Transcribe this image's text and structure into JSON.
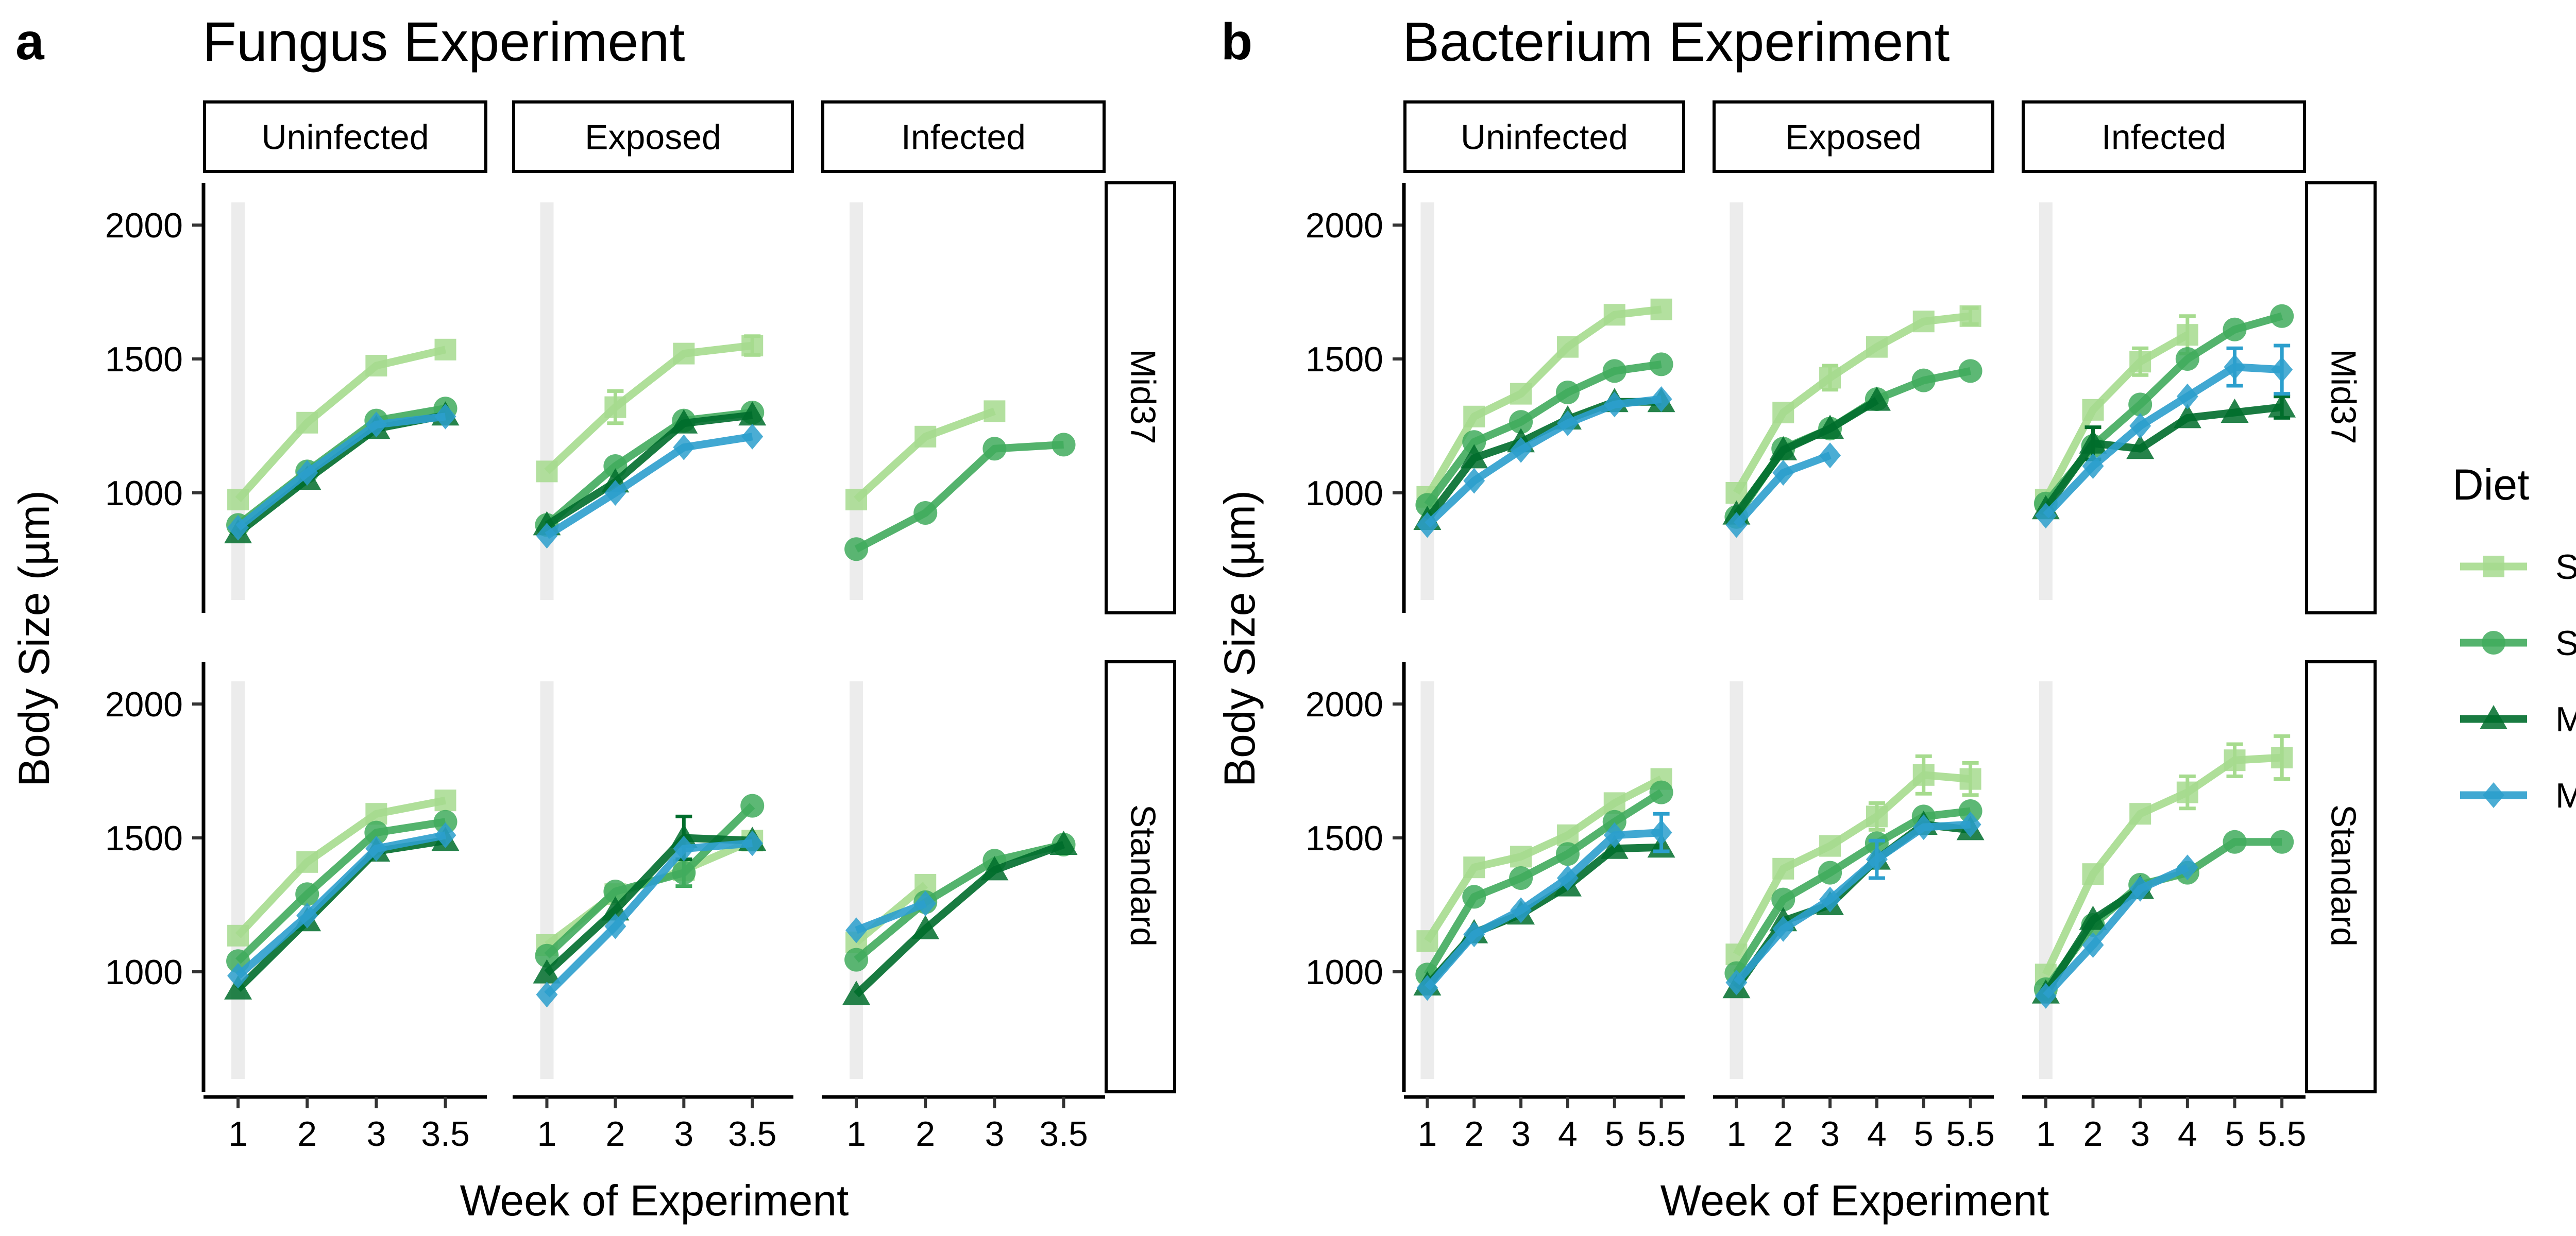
{
  "colors": {
    "S": "#a6db8e",
    "SM": "#41ab5d",
    "M": "#006d2c",
    "M+": "#2c9fcd",
    "shade": "#ececec"
  },
  "legend": {
    "title": "Diet",
    "entries": [
      {
        "key": "S",
        "label": "S",
        "shape": "square"
      },
      {
        "key": "SM",
        "label": "SM",
        "shape": "circle"
      },
      {
        "key": "M",
        "label": "M",
        "shape": "triangle"
      },
      {
        "key": "M+",
        "label": "M+",
        "shape": "diamond"
      }
    ]
  },
  "chart_data": [
    {
      "type": "line",
      "panel_letter": "a",
      "title": "Fungus Experiment",
      "xlabel": "Week of Experiment",
      "ylabel": "Body Size (µm)",
      "xticks": [
        "1",
        "2",
        "3",
        "3.5"
      ],
      "xlim": [
        0.5,
        4.6
      ],
      "ylim": [
        600,
        2100
      ],
      "yticks": [
        1000,
        1500,
        2000
      ],
      "shaded_x": 1,
      "columns": [
        "Uninfected",
        "Exposed",
        "Infected"
      ],
      "rows": [
        "Mid37",
        "Standard"
      ],
      "panels": [
        {
          "row": 0,
          "col": 0,
          "series": [
            {
              "key": "S",
              "x": [
                1,
                2,
                3,
                4
              ],
              "y": [
                975,
                1262,
                1475,
                1535
              ]
            },
            {
              "key": "SM",
              "x": [
                1,
                2,
                3,
                4
              ],
              "y": [
                880,
                1080,
                1270,
                1315
              ]
            },
            {
              "key": "M",
              "x": [
                1,
                2,
                3,
                4
              ],
              "y": [
                850,
                1050,
                1240,
                1290
              ]
            },
            {
              "key": "M+",
              "x": [
                1,
                2,
                3,
                4
              ],
              "y": [
                870,
                1075,
                1255,
                1285
              ]
            }
          ]
        },
        {
          "row": 0,
          "col": 1,
          "series": [
            {
              "key": "S",
              "x": [
                1,
                2,
                3,
                4
              ],
              "y": [
                1080,
                1320,
                1520,
                1550
              ],
              "err": [
                0,
                60,
                0,
                35
              ]
            },
            {
              "key": "SM",
              "x": [
                1,
                2,
                3,
                4
              ],
              "y": [
                880,
                1100,
                1270,
                1300
              ]
            },
            {
              "key": "M",
              "x": [
                1,
                2,
                3,
                4
              ],
              "y": [
                880,
                1040,
                1260,
                1290
              ]
            },
            {
              "key": "M+",
              "x": [
                1,
                2,
                3,
                4
              ],
              "y": [
                840,
                1000,
                1170,
                1210
              ]
            }
          ]
        },
        {
          "row": 0,
          "col": 2,
          "series": [
            {
              "key": "S",
              "x": [
                1,
                2,
                3
              ],
              "y": [
                975,
                1210,
                1305
              ]
            },
            {
              "key": "SM",
              "x": [
                1,
                2,
                3,
                4
              ],
              "y": [
                790,
                925,
                1165,
                1180
              ]
            }
          ]
        },
        {
          "row": 1,
          "col": 0,
          "series": [
            {
              "key": "S",
              "x": [
                1,
                2,
                3,
                4
              ],
              "y": [
                1135,
                1410,
                1590,
                1640
              ]
            },
            {
              "key": "SM",
              "x": [
                1,
                2,
                3,
                4
              ],
              "y": [
                1040,
                1290,
                1520,
                1560
              ]
            },
            {
              "key": "M",
              "x": [
                1,
                2,
                3,
                4
              ],
              "y": [
                935,
                1190,
                1450,
                1490
              ]
            },
            {
              "key": "M+",
              "x": [
                1,
                2,
                3,
                4
              ],
              "y": [
                985,
                1210,
                1460,
                1510
              ]
            }
          ]
        },
        {
          "row": 1,
          "col": 1,
          "series": [
            {
              "key": "S",
              "x": [
                1,
                2,
                3,
                4
              ],
              "y": [
                1100,
                1290,
                1380,
                1490
              ]
            },
            {
              "key": "SM",
              "x": [
                1,
                2,
                3,
                4
              ],
              "y": [
                1060,
                1300,
                1370,
                1620
              ],
              "err": [
                0,
                0,
                50,
                0
              ]
            },
            {
              "key": "M",
              "x": [
                1,
                2,
                3,
                4
              ],
              "y": [
                995,
                1230,
                1500,
                1490
              ],
              "err": [
                0,
                0,
                80,
                0
              ]
            },
            {
              "key": "M+",
              "x": [
                1,
                2,
                3,
                4
              ],
              "y": [
                915,
                1170,
                1460,
                1480
              ]
            }
          ]
        },
        {
          "row": 1,
          "col": 2,
          "series": [
            {
              "key": "S",
              "x": [
                1,
                2
              ],
              "y": [
                1110,
                1325
              ]
            },
            {
              "key": "SM",
              "x": [
                1,
                2,
                3,
                4
              ],
              "y": [
                1045,
                1260,
                1415,
                1475
              ]
            },
            {
              "key": "M",
              "x": [
                1,
                2,
                3,
                4
              ],
              "y": [
                915,
                1160,
                1380,
                1475
              ]
            },
            {
              "key": "M+",
              "x": [
                1,
                2
              ],
              "y": [
                1155,
                1255
              ]
            }
          ]
        }
      ]
    },
    {
      "type": "line",
      "panel_letter": "b",
      "title": "Bacterium Experiment",
      "xlabel": "Week of Experiment",
      "ylabel": "Body Size (µm)",
      "xticks": [
        "1",
        "2",
        "3",
        "4",
        "5",
        "5.5"
      ],
      "xlim": [
        0.5,
        6.5
      ],
      "ylim": [
        600,
        2100
      ],
      "yticks": [
        1000,
        1500,
        2000
      ],
      "shaded_x": 1,
      "columns": [
        "Uninfected",
        "Exposed",
        "Infected"
      ],
      "rows": [
        "Mid37",
        "Standard"
      ],
      "panels": [
        {
          "row": 0,
          "col": 0,
          "series": [
            {
              "key": "S",
              "x": [
                1,
                2,
                3,
                4,
                5,
                6
              ],
              "y": [
                985,
                1285,
                1370,
                1545,
                1665,
                1685
              ]
            },
            {
              "key": "SM",
              "x": [
                1,
                2,
                3,
                4,
                5,
                6
              ],
              "y": [
                955,
                1190,
                1265,
                1375,
                1455,
                1480
              ]
            },
            {
              "key": "M",
              "x": [
                1,
                2,
                3,
                4,
                5,
                6
              ],
              "y": [
                900,
                1130,
                1190,
                1275,
                1340,
                1340
              ]
            },
            {
              "key": "M+",
              "x": [
                1,
                2,
                3,
                4,
                5,
                6
              ],
              "y": [
                880,
                1045,
                1160,
                1260,
                1330,
                1350
              ]
            }
          ]
        },
        {
          "row": 0,
          "col": 1,
          "series": [
            {
              "key": "S",
              "x": [
                1,
                2,
                3,
                4,
                5,
                6
              ],
              "y": [
                1000,
                1300,
                1430,
                1545,
                1640,
                1660
              ],
              "err": [
                0,
                0,
                45,
                0,
                0,
                30
              ]
            },
            {
              "key": "SM",
              "x": [
                1,
                2,
                3,
                4,
                5,
                6
              ],
              "y": [
                910,
                1165,
                1240,
                1350,
                1420,
                1455
              ]
            },
            {
              "key": "M",
              "x": [
                1,
                2,
                3,
                4
              ],
              "y": [
                920,
                1160,
                1240,
                1345
              ]
            },
            {
              "key": "M+",
              "x": [
                1,
                2,
                3
              ],
              "y": [
                880,
                1075,
                1140
              ]
            }
          ]
        },
        {
          "row": 0,
          "col": 2,
          "series": [
            {
              "key": "S",
              "x": [
                1,
                2,
                3,
                4
              ],
              "y": [
                975,
                1310,
                1490,
                1590
              ],
              "err": [
                0,
                0,
                50,
                70
              ]
            },
            {
              "key": "SM",
              "x": [
                1,
                2,
                3,
                4,
                5,
                6
              ],
              "y": [
                960,
                1175,
                1330,
                1500,
                1610,
                1660
              ]
            },
            {
              "key": "M",
              "x": [
                1,
                2,
                3,
                4,
                5,
                6
              ],
              "y": [
                940,
                1185,
                1165,
                1280,
                1300,
                1320
              ],
              "err": [
                0,
                60,
                0,
                0,
                0,
                40
              ]
            },
            {
              "key": "M+",
              "x": [
                1,
                2,
                3,
                4,
                5,
                6
              ],
              "y": [
                915,
                1100,
                1250,
                1360,
                1470,
                1460
              ],
              "err": [
                0,
                0,
                0,
                0,
                70,
                90
              ]
            }
          ]
        },
        {
          "row": 1,
          "col": 0,
          "series": [
            {
              "key": "S",
              "x": [
                1,
                2,
                3,
                4,
                5,
                6
              ],
              "y": [
                1115,
                1390,
                1430,
                1510,
                1630,
                1720
              ]
            },
            {
              "key": "SM",
              "x": [
                1,
                2,
                3,
                4,
                5,
                6
              ],
              "y": [
                990,
                1280,
                1350,
                1440,
                1560,
                1670
              ]
            },
            {
              "key": "M",
              "x": [
                1,
                2,
                3,
                4,
                5,
                6
              ],
              "y": [
                950,
                1145,
                1215,
                1320,
                1460,
                1465
              ]
            },
            {
              "key": "M+",
              "x": [
                1,
                2,
                3,
                4,
                5,
                6
              ],
              "y": [
                940,
                1140,
                1230,
                1350,
                1510,
                1520
              ],
              "err": [
                0,
                0,
                0,
                0,
                0,
                70
              ]
            }
          ]
        },
        {
          "row": 1,
          "col": 1,
          "series": [
            {
              "key": "S",
              "x": [
                1,
                2,
                3,
                4,
                5,
                6
              ],
              "y": [
                1065,
                1385,
                1470,
                1580,
                1735,
                1720
              ],
              "err": [
                0,
                0,
                0,
                50,
                70,
                60
              ]
            },
            {
              "key": "SM",
              "x": [
                1,
                2,
                3,
                4,
                5,
                6
              ],
              "y": [
                995,
                1270,
                1370,
                1480,
                1580,
                1600
              ]
            },
            {
              "key": "M",
              "x": [
                1,
                2,
                3,
                4,
                5,
                6
              ],
              "y": [
                940,
                1190,
                1250,
                1420,
                1550,
                1530
              ]
            },
            {
              "key": "M+",
              "x": [
                1,
                2,
                3,
                4,
                5,
                6
              ],
              "y": [
                960,
                1160,
                1270,
                1420,
                1540,
                1550
              ],
              "err": [
                0,
                0,
                0,
                70,
                0,
                0
              ]
            }
          ]
        },
        {
          "row": 1,
          "col": 2,
          "series": [
            {
              "key": "S",
              "x": [
                1,
                2,
                3,
                4,
                5,
                6
              ],
              "y": [
                990,
                1365,
                1590,
                1670,
                1790,
                1800
              ],
              "err": [
                0,
                0,
                0,
                60,
                60,
                80
              ]
            },
            {
              "key": "SM",
              "x": [
                1,
                2,
                3,
                4,
                5,
                6
              ],
              "y": [
                935,
                1175,
                1325,
                1370,
                1485,
                1485
              ]
            },
            {
              "key": "M",
              "x": [
                1,
                2,
                3
              ],
              "y": [
                920,
                1195,
                1310
              ]
            },
            {
              "key": "M+",
              "x": [
                1,
                2,
                3,
                4
              ],
              "y": [
                910,
                1100,
                1310,
                1390
              ]
            }
          ]
        }
      ]
    }
  ]
}
